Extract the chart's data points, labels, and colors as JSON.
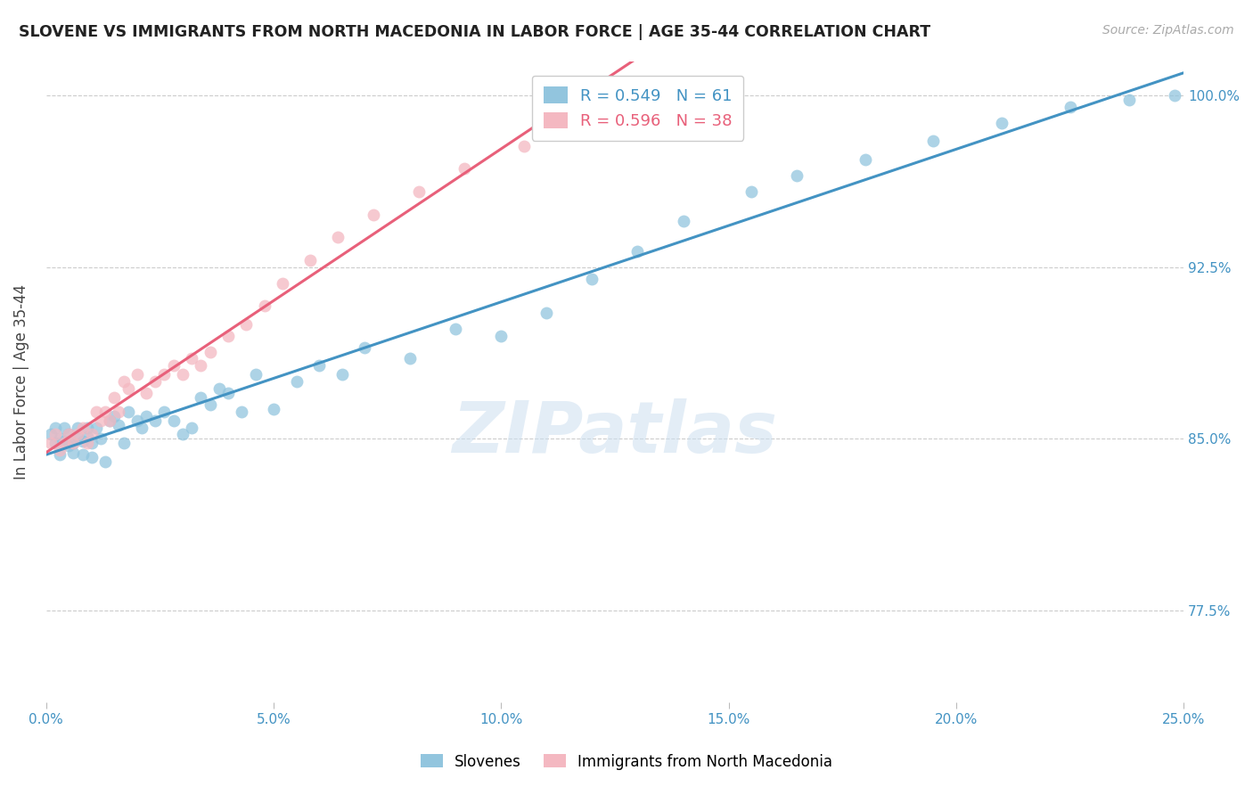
{
  "title": "SLOVENE VS IMMIGRANTS FROM NORTH MACEDONIA IN LABOR FORCE | AGE 35-44 CORRELATION CHART",
  "source": "Source: ZipAtlas.com",
  "ylabel": "In Labor Force | Age 35-44",
  "xmin": 0.0,
  "xmax": 0.25,
  "ymin": 0.735,
  "ymax": 1.015,
  "legend_blue_r": "R = 0.549",
  "legend_blue_n": "N = 61",
  "legend_pink_r": "R = 0.596",
  "legend_pink_n": "N = 38",
  "blue_color": "#92c5de",
  "pink_color": "#f4b8c1",
  "line_blue": "#4393c3",
  "line_pink": "#e8607a",
  "watermark": "ZIPatlas",
  "blue_scatter_x": [
    0.001,
    0.002,
    0.002,
    0.003,
    0.003,
    0.004,
    0.004,
    0.005,
    0.005,
    0.006,
    0.006,
    0.007,
    0.007,
    0.008,
    0.008,
    0.009,
    0.009,
    0.01,
    0.01,
    0.011,
    0.012,
    0.013,
    0.014,
    0.015,
    0.016,
    0.017,
    0.018,
    0.02,
    0.021,
    0.022,
    0.024,
    0.026,
    0.028,
    0.03,
    0.032,
    0.034,
    0.036,
    0.038,
    0.04,
    0.043,
    0.046,
    0.05,
    0.055,
    0.06,
    0.065,
    0.07,
    0.08,
    0.09,
    0.1,
    0.11,
    0.12,
    0.13,
    0.14,
    0.155,
    0.165,
    0.18,
    0.195,
    0.21,
    0.225,
    0.238,
    0.248
  ],
  "blue_scatter_y": [
    0.852,
    0.848,
    0.855,
    0.85,
    0.843,
    0.849,
    0.855,
    0.847,
    0.852,
    0.848,
    0.844,
    0.851,
    0.855,
    0.849,
    0.843,
    0.851,
    0.855,
    0.848,
    0.842,
    0.855,
    0.85,
    0.84,
    0.858,
    0.86,
    0.856,
    0.848,
    0.862,
    0.858,
    0.855,
    0.86,
    0.858,
    0.862,
    0.858,
    0.852,
    0.855,
    0.868,
    0.865,
    0.872,
    0.87,
    0.862,
    0.878,
    0.863,
    0.875,
    0.882,
    0.878,
    0.89,
    0.885,
    0.898,
    0.895,
    0.905,
    0.92,
    0.932,
    0.945,
    0.958,
    0.965,
    0.972,
    0.98,
    0.988,
    0.995,
    0.998,
    1.0
  ],
  "pink_scatter_x": [
    0.001,
    0.002,
    0.003,
    0.004,
    0.005,
    0.006,
    0.007,
    0.008,
    0.009,
    0.01,
    0.011,
    0.012,
    0.013,
    0.014,
    0.015,
    0.016,
    0.017,
    0.018,
    0.02,
    0.022,
    0.024,
    0.026,
    0.028,
    0.03,
    0.032,
    0.034,
    0.036,
    0.04,
    0.044,
    0.048,
    0.052,
    0.058,
    0.064,
    0.072,
    0.082,
    0.092,
    0.105,
    0.118
  ],
  "pink_scatter_y": [
    0.848,
    0.852,
    0.845,
    0.848,
    0.852,
    0.848,
    0.852,
    0.855,
    0.848,
    0.852,
    0.862,
    0.858,
    0.862,
    0.858,
    0.868,
    0.862,
    0.875,
    0.872,
    0.878,
    0.87,
    0.875,
    0.878,
    0.882,
    0.878,
    0.885,
    0.882,
    0.888,
    0.895,
    0.9,
    0.908,
    0.918,
    0.928,
    0.938,
    0.948,
    0.958,
    0.968,
    0.978,
    0.99
  ],
  "ytick_vals": [
    0.775,
    0.85,
    0.925,
    1.0
  ],
  "ytick_labels": [
    "77.5%",
    "85.0%",
    "92.5%",
    "100.0%"
  ],
  "xtick_vals": [
    0.0,
    0.05,
    0.1,
    0.15,
    0.2,
    0.25
  ],
  "xtick_labels": [
    "0.0%",
    "5.0%",
    "10.0%",
    "15.0%",
    "20.0%",
    "25.0%"
  ],
  "tick_color": "#4393c3",
  "grid_color": "#cccccc",
  "title_color": "#222222",
  "source_color": "#aaaaaa"
}
